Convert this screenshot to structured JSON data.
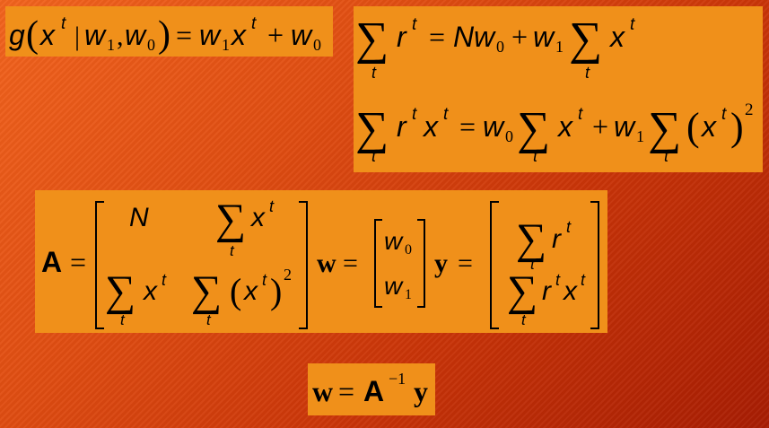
{
  "slide": {
    "eq_model": {
      "g": "g",
      "x": "x",
      "t": "t",
      "bar": "|",
      "w": "w",
      "one": "1",
      "zero": "0",
      "comma": ",",
      "lparen": "(",
      "rparen": ")",
      "eq": "=",
      "plus": "+"
    },
    "normal_eqs": {
      "sigma": "∑",
      "r": "r",
      "t": "t",
      "x": "x",
      "N": "N",
      "w": "w",
      "zero": "0",
      "one": "1",
      "two": "2",
      "eq": "=",
      "plus": "+",
      "lparen": "(",
      "rparen": ")"
    },
    "matrix_eq": {
      "A": "A",
      "w": "w",
      "y": "y",
      "N": "N",
      "sigma": "∑",
      "x": "x",
      "r": "r",
      "t": "t",
      "zero": "0",
      "one": "1",
      "two": "2",
      "eq": "=",
      "lparen": "(",
      "rparen": ")"
    },
    "solution": {
      "w": "w",
      "eq": "=",
      "A": "A",
      "inv": "−1",
      "y": "y"
    }
  }
}
